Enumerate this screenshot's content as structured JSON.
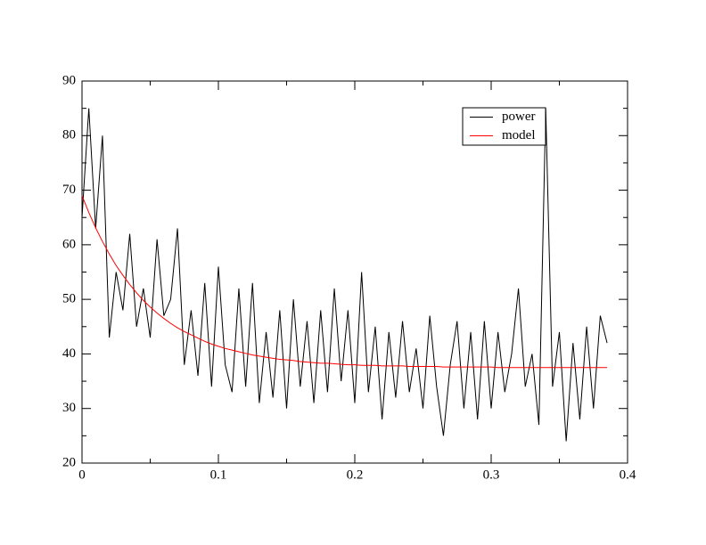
{
  "chart_data": {
    "type": "line",
    "x": [
      0,
      0.005,
      0.01,
      0.015,
      0.02,
      0.025,
      0.03,
      0.035,
      0.04,
      0.045,
      0.05,
      0.055,
      0.06,
      0.065,
      0.07,
      0.075,
      0.08,
      0.085,
      0.09,
      0.095,
      0.1,
      0.105,
      0.11,
      0.115,
      0.12,
      0.125,
      0.13,
      0.135,
      0.14,
      0.145,
      0.15,
      0.155,
      0.16,
      0.165,
      0.17,
      0.175,
      0.18,
      0.185,
      0.19,
      0.195,
      0.2,
      0.205,
      0.21,
      0.215,
      0.22,
      0.225,
      0.23,
      0.235,
      0.24,
      0.245,
      0.25,
      0.255,
      0.26,
      0.265,
      0.27,
      0.275,
      0.28,
      0.285,
      0.29,
      0.295,
      0.3,
      0.305,
      0.31,
      0.315,
      0.32,
      0.325,
      0.33,
      0.335,
      0.34,
      0.345,
      0.35,
      0.355,
      0.36,
      0.365,
      0.37,
      0.375,
      0.38,
      0.385
    ],
    "series": [
      {
        "name": "power",
        "color": "#000000",
        "values": [
          65,
          85,
          63,
          80,
          43,
          55,
          48,
          62,
          45,
          52,
          43,
          61,
          47,
          50,
          63,
          38,
          48,
          36,
          53,
          34,
          56,
          38,
          33,
          52,
          34,
          53,
          31,
          44,
          32,
          48,
          30,
          50,
          34,
          46,
          31,
          48,
          33,
          52,
          35,
          48,
          31,
          55,
          33,
          45,
          28,
          44,
          32,
          46,
          33,
          41,
          30,
          47,
          34,
          25,
          38,
          46,
          30,
          44,
          28,
          46,
          30,
          44,
          33,
          40,
          52,
          34,
          40,
          27,
          85,
          34,
          44,
          24,
          42,
          28,
          45,
          30,
          47,
          42
        ]
      },
      {
        "name": "model",
        "color": "#ff0000",
        "values": [
          69.0,
          65.9,
          63.1,
          60.6,
          58.3,
          56.2,
          54.4,
          52.7,
          51.2,
          49.8,
          48.6,
          47.5,
          46.5,
          45.6,
          44.8,
          44.1,
          43.5,
          42.9,
          42.3,
          41.8,
          41.4,
          41.0,
          40.7,
          40.4,
          40.1,
          39.8,
          39.6,
          39.4,
          39.2,
          39.0,
          38.9,
          38.8,
          38.6,
          38.5,
          38.4,
          38.3,
          38.3,
          38.2,
          38.1,
          38.0,
          38.0,
          37.9,
          37.9,
          37.9,
          37.8,
          37.8,
          37.8,
          37.8,
          37.7,
          37.7,
          37.7,
          37.7,
          37.7,
          37.6,
          37.6,
          37.6,
          37.6,
          37.6,
          37.6,
          37.6,
          37.6,
          37.5,
          37.5,
          37.5,
          37.5,
          37.5,
          37.5,
          37.5,
          37.5,
          37.5,
          37.5,
          37.5,
          37.5,
          37.5,
          37.5,
          37.5,
          37.5,
          37.5
        ]
      }
    ],
    "xlim": [
      0,
      0.4
    ],
    "xticks": [
      0,
      0.1,
      0.2,
      0.3,
      0.4
    ],
    "ylim": [
      20,
      90
    ],
    "yticks": [
      20,
      30,
      40,
      50,
      60,
      70,
      80,
      90
    ],
    "legend": "upper right"
  }
}
